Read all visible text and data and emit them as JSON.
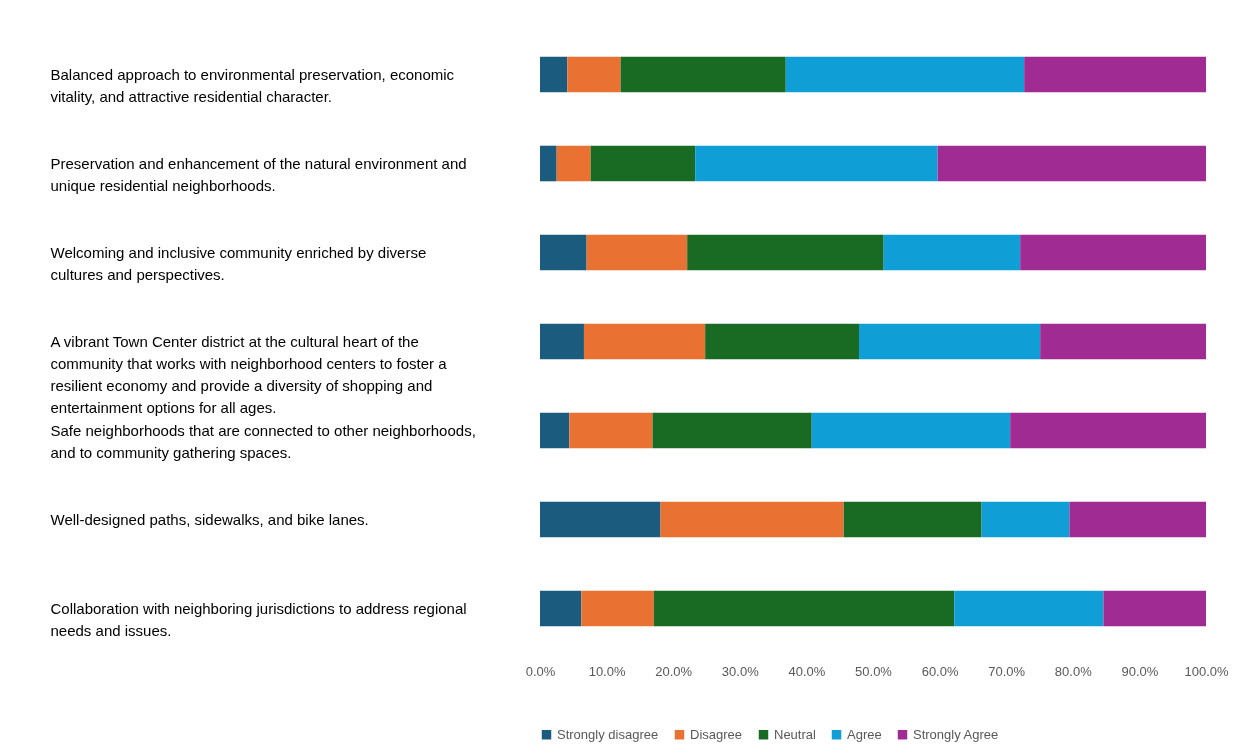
{
  "chart_data": {
    "type": "bar",
    "orientation": "horizontal",
    "stacked": true,
    "categories": [
      "Balanced approach to environmental preservation, economic vitality, and attractive residential character.",
      "Preservation and enhancement of the natural environment and unique residential neighborhoods.",
      "Welcoming and inclusive community enriched by diverse cultures and perspectives.",
      "A vibrant Town Center district at the cultural heart of the community that works with neighborhood centers to foster a resilient economy and provide a diversity of shopping and entertainment options for all ages.",
      "Safe neighborhoods that are connected to other neighborhoods, and to community gathering spaces.",
      "Well-designed paths, sidewalks, and bike lanes.",
      "Collaboration with neighboring jurisdictions to address regional needs and issues."
    ],
    "series": [
      {
        "name": "Strongly disagree",
        "color": "#1a5b7e",
        "values": [
          4.1,
          2.5,
          7.0,
          6.6,
          4.4,
          18.1,
          6.2
        ]
      },
      {
        "name": "Disagree",
        "color": "#e97132",
        "values": [
          8.0,
          5.1,
          15.1,
          18.2,
          12.5,
          27.5,
          10.9
        ]
      },
      {
        "name": "Neutral",
        "color": "#196b24",
        "values": [
          24.8,
          15.7,
          29.5,
          23.1,
          23.9,
          20.7,
          45.1
        ]
      },
      {
        "name": "Agree",
        "color": "#0f9ed5",
        "values": [
          35.8,
          36.4,
          20.5,
          27.2,
          29.8,
          13.2,
          22.4
        ]
      },
      {
        "name": "Strongly Agree",
        "color": "#a02b93",
        "values": [
          27.3,
          40.3,
          27.9,
          24.9,
          29.4,
          20.5,
          15.4
        ]
      }
    ],
    "xlim": [
      0,
      100
    ],
    "xticks": [
      {
        "value": 0,
        "label": "0.0%"
      },
      {
        "value": 10,
        "label": "10.0%"
      },
      {
        "value": 20,
        "label": "20.0%"
      },
      {
        "value": 30,
        "label": "30.0%"
      },
      {
        "value": 40,
        "label": "40.0%"
      },
      {
        "value": 50,
        "label": "50.0%"
      },
      {
        "value": 60,
        "label": "60.0%"
      },
      {
        "value": 70,
        "label": "70.0%"
      },
      {
        "value": 80,
        "label": "80.0%"
      },
      {
        "value": 90,
        "label": "90.0%"
      },
      {
        "value": 100,
        "label": "100.0%"
      }
    ],
    "legend": "bottom"
  }
}
